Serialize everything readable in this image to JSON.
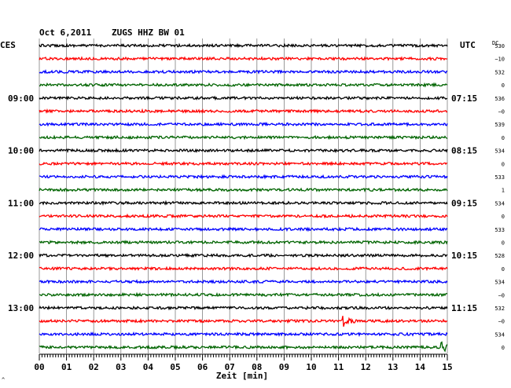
{
  "header": {
    "date": "Oct 6,2011",
    "station": "ZUGS HHZ BW 01",
    "left_tz": "CES",
    "right_tz": "UTC",
    "dc_label": "DC"
  },
  "colors": {
    "trace_cycle": [
      "#000000",
      "#ff0000",
      "#0000ff",
      "#006400"
    ],
    "grid": "#808080",
    "background": "#ffffff"
  },
  "chart_data": {
    "type": "line",
    "title": "Oct 6,2011   ZUGS HHZ BW 01",
    "xlabel": "Zeit [min]",
    "xlim": [
      0,
      15
    ],
    "x_ticks": [
      "00",
      "01",
      "02",
      "03",
      "04",
      "05",
      "06",
      "07",
      "08",
      "09",
      "10",
      "11",
      "12",
      "13",
      "14",
      "15"
    ],
    "grid": true,
    "rows_per_hour": 4,
    "row_count": 24,
    "left_hour_labels": [
      "09:00",
      "10:00",
      "11:00",
      "12:00",
      "13:00"
    ],
    "right_hour_labels": [
      "07:15",
      "08:15",
      "09:15",
      "10:15",
      "11:15"
    ],
    "dc_values": [
      "530",
      "−10",
      "532",
      "0",
      "536",
      "−0",
      "539",
      "0",
      "534",
      "0",
      "533",
      "1",
      "534",
      "0",
      "533",
      "0",
      "528",
      "0",
      "534",
      "−0",
      "532",
      "−0",
      "534",
      "0"
    ],
    "events": [
      {
        "row": 21,
        "minute": 11.2,
        "amplitude": "large",
        "color": "red"
      },
      {
        "row": 23,
        "minute": 14.8,
        "amplitude": "large",
        "color": "green"
      }
    ]
  }
}
